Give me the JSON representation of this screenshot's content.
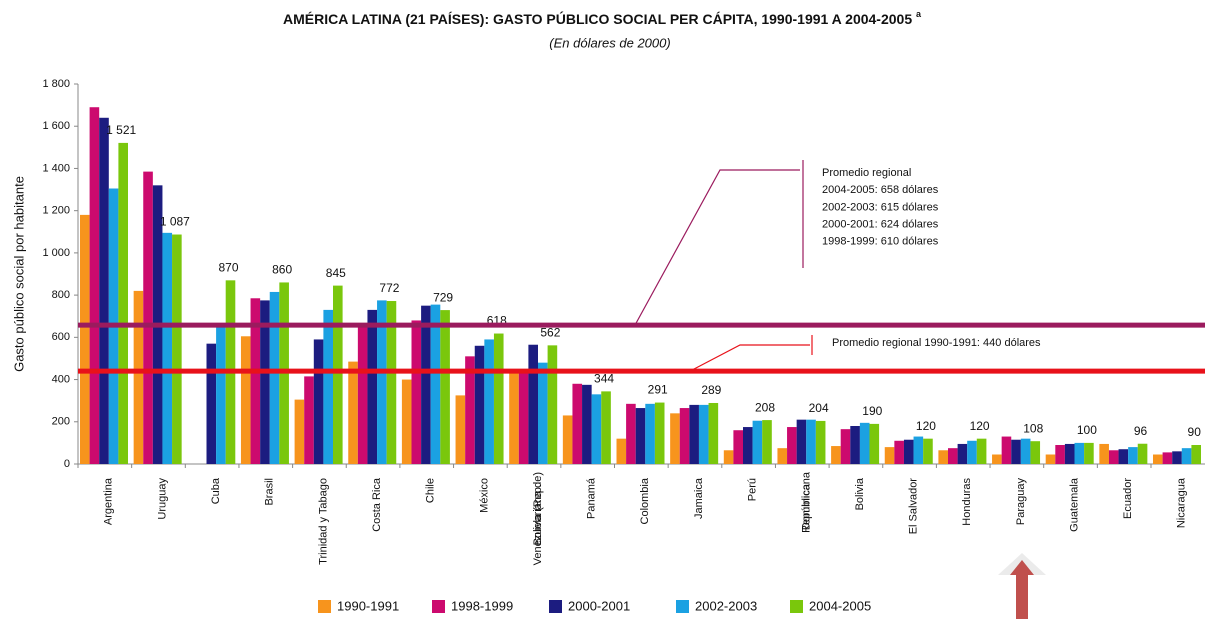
{
  "chart_data": {
    "type": "bar",
    "title": "AMÉRICA LATINA (21 PAÍSES): GASTO PÚBLICO SOCIAL PER CÁPITA, 1990-1991 A 2004-2005",
    "title_note": "a",
    "subtitle": "(En dólares de 2000)",
    "y_label": "Gasto público social por habitante",
    "categories": [
      "Argentina",
      "Uruguay",
      "Cuba",
      "Brasil",
      "Trinidad y Tabago",
      "Costa Rica",
      "Chile",
      "México",
      "Venezuela (Rep. Bolivariana de)",
      "Panamá",
      "Colombia",
      "Jamaica",
      "Perú",
      "República Dominicana",
      "Bolivia",
      "El Salvador",
      "Honduras",
      "Paraguay",
      "Guatemala",
      "Ecuador",
      "Nicaragua"
    ],
    "series": [
      {
        "name": "1990-1991",
        "color": "#f7941d",
        "values": [
          1180,
          820,
          null,
          605,
          305,
          485,
          400,
          325,
          450,
          230,
          120,
          240,
          65,
          75,
          85,
          80,
          65,
          45,
          45,
          95,
          45
        ]
      },
      {
        "name": "1998-1999",
        "color": "#cc0a6e",
        "values": [
          1690,
          1385,
          null,
          785,
          415,
          660,
          680,
          510,
          450,
          380,
          285,
          265,
          160,
          175,
          165,
          110,
          75,
          130,
          90,
          65,
          55
        ]
      },
      {
        "name": "2000-2001",
        "color": "#1c1c80",
        "values": [
          1640,
          1320,
          570,
          775,
          590,
          730,
          750,
          560,
          565,
          375,
          265,
          280,
          175,
          210,
          180,
          115,
          95,
          115,
          95,
          70,
          60
        ]
      },
      {
        "name": "2002-2003",
        "color": "#1ba1e2",
        "values": [
          1305,
          1095,
          650,
          815,
          730,
          775,
          755,
          590,
          480,
          330,
          285,
          280,
          205,
          210,
          195,
          130,
          110,
          120,
          100,
          80,
          75
        ]
      },
      {
        "name": "2004-2005",
        "color": "#7ac70c",
        "values": [
          1521,
          1087,
          870,
          860,
          845,
          772,
          729,
          618,
          562,
          344,
          291,
          289,
          208,
          204,
          190,
          120,
          120,
          108,
          100,
          96,
          90
        ],
        "value_labels": [
          "1 521",
          "1 087",
          "870",
          "860",
          "845",
          "772",
          "729",
          "618",
          "562",
          "344",
          "291",
          "289",
          "208",
          "204",
          "190",
          "120",
          "120",
          "108",
          "100",
          "96",
          "90"
        ]
      }
    ],
    "ylim": [
      0,
      1800
    ],
    "yticks": [
      0,
      200,
      400,
      600,
      800,
      {
        "value": 1000,
        "label": "1 000"
      },
      {
        "value": 1200,
        "label": "1 200"
      },
      {
        "value": 1400,
        "label": "1 400"
      },
      {
        "value": 1600,
        "label": "1 600"
      },
      {
        "value": 1800,
        "label": "1 800"
      }
    ],
    "reference_lines": [
      {
        "value": 658,
        "color": "#9b1b5e",
        "annotation": [
          "Promedio regional",
          "2004-2005: 658 dólares",
          "2002-2003: 615 dólares",
          "2000-2001: 624 dólares",
          "1998-1999: 610 dólares"
        ]
      },
      {
        "value": 440,
        "color": "#e8121a",
        "annotation": [
          "Promedio regional 1990-1991: 440 dólares"
        ]
      }
    ]
  }
}
